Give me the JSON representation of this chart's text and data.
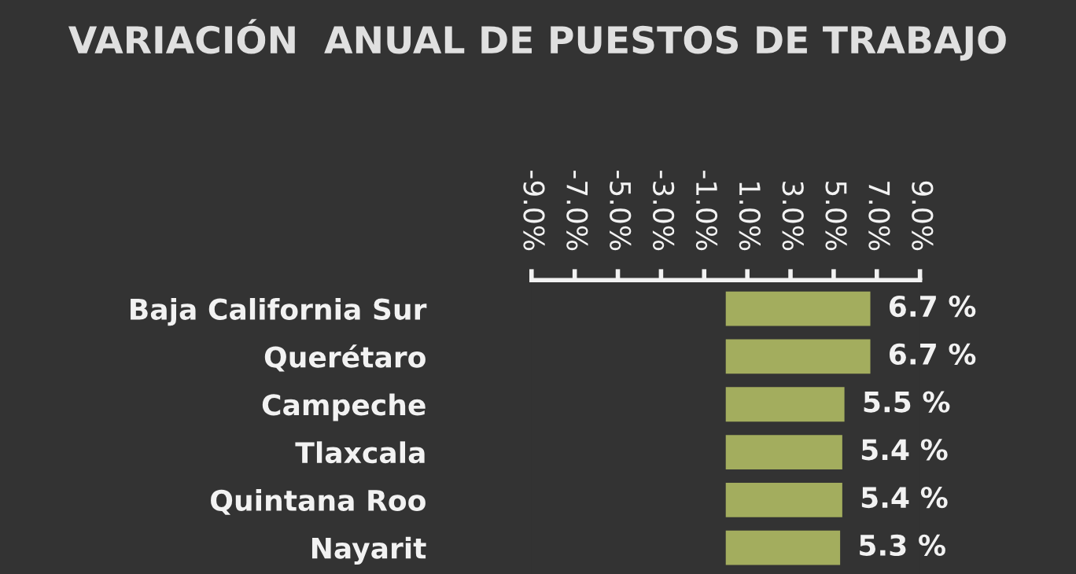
{
  "chart_data": {
    "type": "bar",
    "orientation": "horizontal",
    "title": "VARIACIÓN  ANUAL DE PUESTOS DE TRABAJO",
    "categories": [
      "Baja California Sur",
      "Querétaro",
      "Campeche",
      "Tlaxcala",
      "Quintana Roo",
      "Nayarit"
    ],
    "values": [
      6.7,
      6.7,
      5.5,
      5.4,
      5.4,
      5.3
    ],
    "value_labels": [
      "6.7 %",
      "6.7 %",
      "5.5 %",
      "5.4 %",
      "5.4 %",
      "5.3 %"
    ],
    "color": "#a3ad5e",
    "xlim": [
      -9,
      9
    ],
    "xticks": [
      {
        "value": -9,
        "label": "-9.0%"
      },
      {
        "value": -7,
        "label": "-7.0%"
      },
      {
        "value": -5,
        "label": "-5.0%"
      },
      {
        "value": -3,
        "label": "-3.0%"
      },
      {
        "value": -1,
        "label": "-1.0%"
      },
      {
        "value": 1,
        "label": "1.0%"
      },
      {
        "value": 3,
        "label": "3.0%"
      },
      {
        "value": 5,
        "label": "5.0%"
      },
      {
        "value": 7,
        "label": "7.0%"
      },
      {
        "value": 9,
        "label": "9.0%"
      }
    ],
    "grid": false
  }
}
